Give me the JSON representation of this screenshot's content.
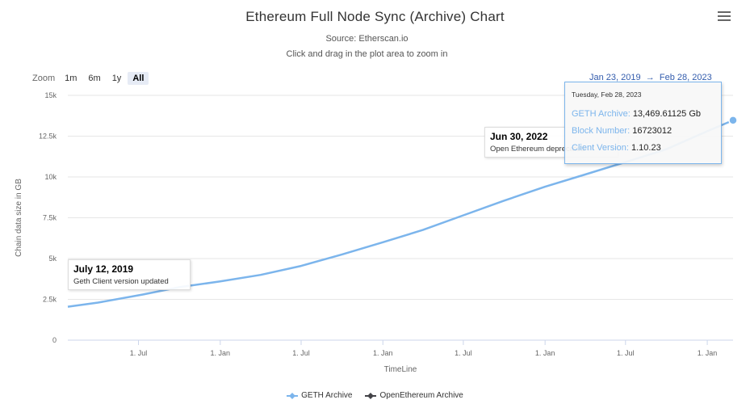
{
  "title": "Ethereum Full Node Sync (Archive) Chart",
  "subtitle": "Source: Etherscan.io",
  "instruction": "Click and drag in the plot area to zoom in",
  "zoom": {
    "label": "Zoom",
    "buttons": [
      "1m",
      "6m",
      "1y",
      "All"
    ],
    "active": "All"
  },
  "range": {
    "from": "Jan 23, 2019",
    "separator": "→",
    "to": "Feb 28, 2023"
  },
  "tooltip": {
    "date": "Tuesday, Feb 28, 2023",
    "rows": [
      {
        "key": "GETH Archive",
        "value": "13,469.61125 Gb"
      },
      {
        "key": "Block Number",
        "value": "16723012"
      },
      {
        "key": "Client Version",
        "value": "1.10.23"
      }
    ]
  },
  "annotations": [
    {
      "title": "July 12, 2019",
      "text": "Geth Client version updated"
    },
    {
      "title": "Jun 30, 2022",
      "text": "Open Ethereum deprecated"
    }
  ],
  "colors": {
    "geth": "#7cb5ec",
    "openethereum": "#434348",
    "grid": "#e6e6e6"
  },
  "chart_data": {
    "type": "line",
    "title": "Ethereum Full Node Sync (Archive) Chart",
    "subtitle": "Source: Etherscan.io",
    "xlabel": "TimeLine",
    "ylabel": "Chain data size in GB",
    "xlim": [
      "2019-01-23",
      "2023-02-28"
    ],
    "ylim": [
      0,
      15000
    ],
    "yticks": [
      0,
      2500,
      5000,
      7500,
      10000,
      12500,
      15000
    ],
    "ytick_labels": [
      "0",
      "2.5k",
      "5k",
      "7.5k",
      "10k",
      "12.5k",
      "15k"
    ],
    "xticks": [
      "2019-07-01",
      "2020-01-01",
      "2020-07-01",
      "2021-01-01",
      "2021-07-01",
      "2022-01-01",
      "2022-07-01",
      "2023-01-01"
    ],
    "xtick_labels": [
      "1. Jul",
      "1. Jan",
      "1. Jul",
      "1. Jan",
      "1. Jul",
      "1. Jan",
      "1. Jul",
      "1. Jan"
    ],
    "grid": true,
    "legend_position": "bottom",
    "series": [
      {
        "name": "GETH Archive",
        "x": [
          "2019-01-23",
          "2019-04-01",
          "2019-07-12",
          "2019-10-01",
          "2020-01-01",
          "2020-04-01",
          "2020-07-01",
          "2020-10-01",
          "2021-01-01",
          "2021-04-01",
          "2021-07-01",
          "2021-10-01",
          "2022-01-01",
          "2022-04-01",
          "2022-06-30",
          "2022-10-01",
          "2023-01-01",
          "2023-02-28"
        ],
        "y": [
          2050,
          2300,
          2800,
          3250,
          3600,
          4000,
          4550,
          5250,
          6000,
          6750,
          7650,
          8550,
          9400,
          10150,
          10900,
          11700,
          12800,
          13469.61125
        ]
      },
      {
        "name": "OpenEthereum Archive",
        "x": [],
        "y": []
      }
    ],
    "annotations": [
      {
        "x": "2019-07-12",
        "title": "July 12, 2019",
        "text": "Geth Client version updated"
      },
      {
        "x": "2022-06-30",
        "title": "Jun 30, 2022",
        "text": "Open Ethereum deprecated"
      }
    ]
  }
}
